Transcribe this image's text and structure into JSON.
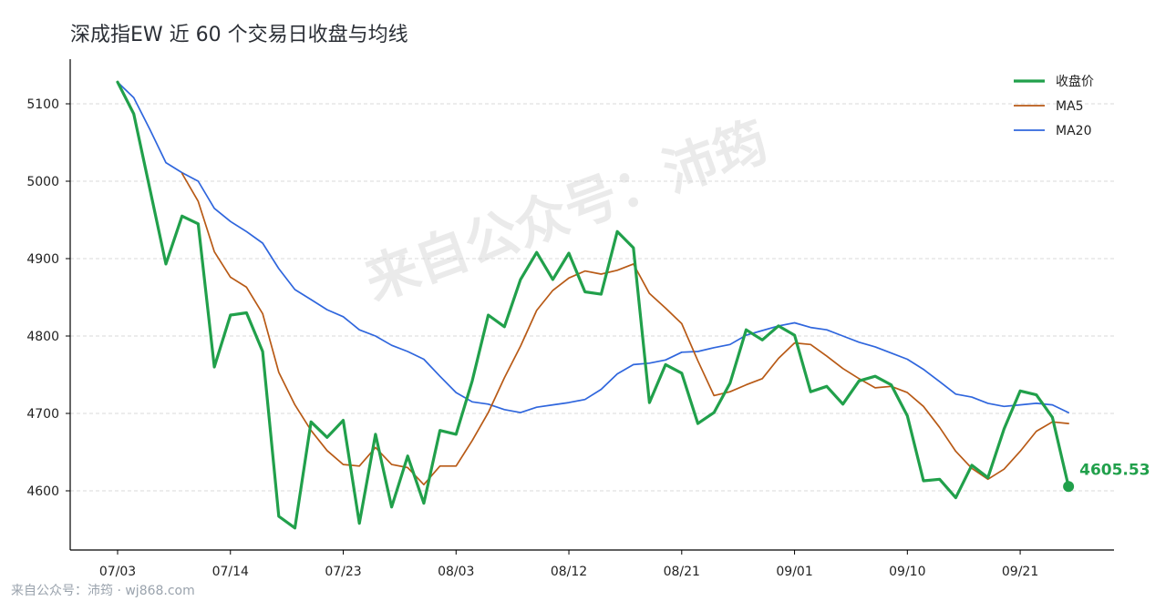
{
  "title": "深成指EW 近 60 个交易日收盘与均线",
  "watermark": "来自公众号：沛筠",
  "footer": "来自公众号：沛筠 · wj868.com",
  "colors": {
    "close": "#21a04b",
    "ma5": "#b85a16",
    "ma20": "#2f66dd",
    "grid": "#d8d8d8",
    "axis": "#000000"
  },
  "chart_data": {
    "type": "line",
    "title": "深成指EW 近 60 个交易日收盘与均线",
    "xlabel": "",
    "ylabel": "",
    "ylim": [
      4535,
      5160
    ],
    "yticks": [
      4600,
      4700,
      4800,
      4900,
      5000,
      5100
    ],
    "grid": "horizontal dashed",
    "legend_position": "top-right",
    "x_tick_labels": [
      "07/03",
      "07/14",
      "07/23",
      "08/03",
      "08/12",
      "08/21",
      "09/01",
      "09/10",
      "09/21"
    ],
    "x_tick_indices": [
      0,
      7,
      14,
      21,
      28,
      35,
      42,
      49,
      56
    ],
    "n_points": 60,
    "series": [
      {
        "name": "收盘价",
        "color": "#21a04b",
        "values": [
          5128,
          5087,
          4990,
          4893,
          4955,
          4945,
          4760,
          4827,
          4830,
          4780,
          4567,
          4552,
          4689,
          4669,
          4691,
          4558,
          4673,
          4579,
          4645,
          4584,
          4678,
          4673,
          4742,
          4827,
          4812,
          4873,
          4908,
          4873,
          4907,
          4857,
          4854,
          4935,
          4914,
          4714,
          4763,
          4752,
          4687,
          4701,
          4739,
          4808,
          4795,
          4813,
          4801,
          4728,
          4735,
          4712,
          4742,
          4748,
          4737,
          4697,
          4613,
          4615,
          4591,
          4633,
          4617,
          4680,
          4729,
          4724,
          4695,
          4605.53
        ]
      },
      {
        "name": "MA5",
        "color": "#b85a16",
        "start_index": 4,
        "values": [
          5010,
          4974,
          4909,
          4876,
          4863,
          4829,
          4753,
          4711,
          4678,
          4652,
          4634,
          4632,
          4656,
          4634,
          4630,
          4608,
          4632,
          4632,
          4665,
          4701,
          4746,
          4787,
          4833,
          4859,
          4875,
          4884,
          4880,
          4885,
          4893,
          4855,
          4836,
          4816,
          4768,
          4723,
          4728,
          4737,
          4745,
          4771,
          4791,
          4789,
          4774,
          4758,
          4745,
          4733,
          4735,
          4727,
          4709,
          4682,
          4651,
          4629,
          4615,
          4628,
          4651,
          4677,
          4689,
          4687
        ]
      },
      {
        "name": "MA20",
        "color": "#2f66dd",
        "values": [
          5128,
          5108,
          5067,
          5024,
          5011,
          5000,
          4965,
          4948,
          4935,
          4920,
          4887,
          4860,
          4847,
          4834,
          4825,
          4808,
          4800,
          4788,
          4780,
          4770,
          4748,
          4727,
          4715,
          4712,
          4705,
          4701,
          4708,
          4711,
          4714,
          4718,
          4731,
          4751,
          4763,
          4765,
          4769,
          4779,
          4780,
          4785,
          4789,
          4801,
          4807,
          4813,
          4817,
          4811,
          4808,
          4800,
          4792,
          4786,
          4778,
          4770,
          4757,
          4741,
          4725,
          4721,
          4713,
          4709,
          4711,
          4713,
          4711,
          4701
        ]
      }
    ],
    "annotations": [
      {
        "text": "4605.53",
        "index": 59,
        "value": 4605.53
      }
    ]
  }
}
